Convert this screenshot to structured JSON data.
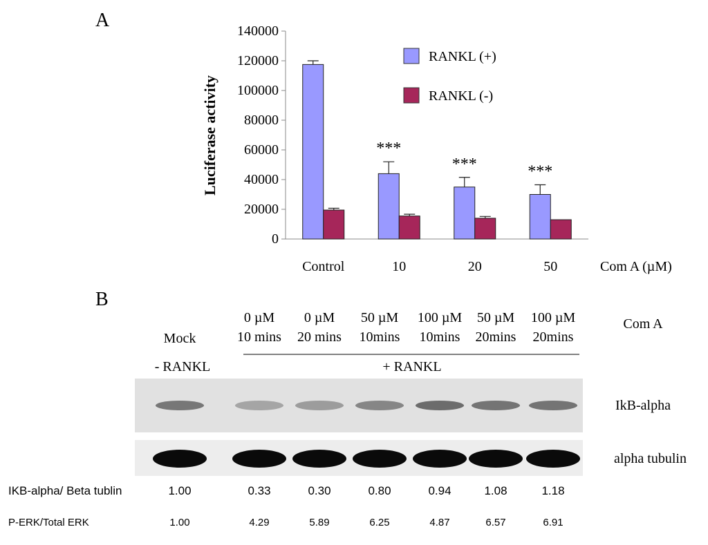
{
  "panel_a_label": "A",
  "panel_b_label": "B",
  "chart_data": {
    "type": "bar",
    "ylabel": "Luciferase activity",
    "xlabel": "Com A (µM)",
    "ylim": [
      0,
      140000
    ],
    "yticks": [
      0,
      20000,
      40000,
      60000,
      80000,
      100000,
      120000,
      140000
    ],
    "categories": [
      "Control",
      "10",
      "20",
      "50"
    ],
    "series": [
      {
        "name": "RANKL (+)",
        "color": "#9999ff",
        "values": [
          117500,
          44000,
          35000,
          30000
        ],
        "errors": [
          2500,
          8000,
          6500,
          6500
        ]
      },
      {
        "name": "RANKL (-)",
        "color": "#a6265a",
        "values": [
          19500,
          15500,
          14000,
          13000
        ],
        "errors": [
          1200,
          1200,
          1200,
          0
        ]
      }
    ],
    "annotations": [
      "",
      "***",
      "***",
      "***"
    ],
    "legend_position": "top-right",
    "grid": false
  },
  "blot": {
    "treatment_label": "Com A",
    "mock_label": "Mock",
    "minus_rankl": "- RANKL",
    "plus_rankl": "+ RANKL",
    "lanes": [
      {
        "conc": "0 µM",
        "time": "10 mins"
      },
      {
        "conc": "0 µM",
        "time": "20 mins"
      },
      {
        "conc": "50 µM",
        "time": "10mins"
      },
      {
        "conc": "100 µM",
        "time": "10mins"
      },
      {
        "conc": "50 µM",
        "time": "20mins"
      },
      {
        "conc": "100 µM",
        "time": "20mins"
      }
    ],
    "band_rows": [
      {
        "label": "IkB-alpha",
        "intensities": [
          0.7,
          0.4,
          0.45,
          0.6,
          0.78,
          0.72,
          0.72
        ],
        "color": "#4a4a4a"
      },
      {
        "label": "alpha tubulin",
        "intensities": [
          1,
          1,
          1,
          1,
          1,
          1,
          1
        ],
        "color": "#0a0a0a"
      }
    ],
    "quant_rows": [
      {
        "label": "IKB-alpha/ Beta tublin",
        "values": [
          "1.00",
          "0.33",
          "0.30",
          "0.80",
          "0.94",
          "1.08",
          "1.18"
        ]
      },
      {
        "label": "P-ERK/Total   ERK",
        "values": [
          "1.00",
          "4.29",
          "5.89",
          "6.25",
          "4.87",
          "6.57",
          "6.91"
        ]
      }
    ]
  }
}
